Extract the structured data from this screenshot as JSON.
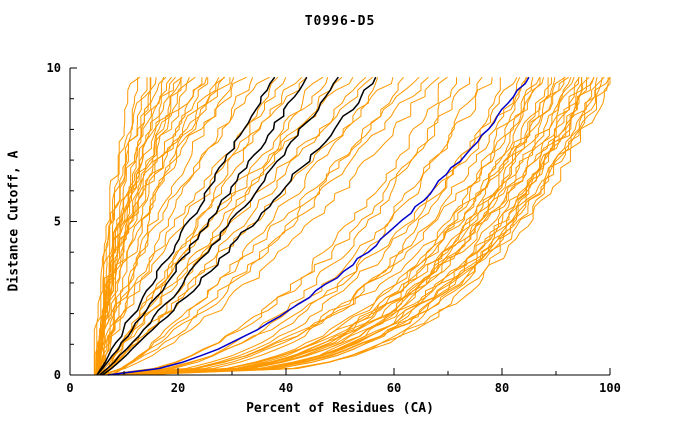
{
  "chart_data": {
    "type": "line",
    "title": "T0996-D5",
    "xlabel": "Percent of Residues (CA)",
    "ylabel": "Distance Cutoff, A",
    "xlim": [
      0,
      100
    ],
    "ylim": [
      0,
      10
    ],
    "x_ticks": [
      0,
      20,
      40,
      60,
      80,
      100
    ],
    "x_minor_ticks": [
      10,
      30,
      50,
      70,
      90
    ],
    "y_ticks": [
      0,
      5,
      10
    ],
    "y_minor_ticks": [
      1,
      2,
      3,
      4,
      6,
      7,
      8,
      9
    ],
    "grid": false,
    "legend": "none",
    "curve_top_y": 9.7,
    "curve_param_format": [
      "x_at_y0_percent",
      "x_at_top_percent",
      "shape_exponent"
    ],
    "series_groups": [
      {
        "name": "predictions-orange",
        "color": "#ff9900",
        "stroke_width": 1,
        "jitter": 1.1,
        "curves": [
          [
            4.5,
            12,
            1.8
          ],
          [
            5,
            13,
            2.0
          ],
          [
            4.8,
            14,
            1.6
          ],
          [
            5.2,
            15,
            2.2
          ],
          [
            5,
            15.5,
            1.4
          ],
          [
            5.5,
            16,
            1.9
          ],
          [
            4.6,
            17,
            2.4
          ],
          [
            5,
            17.5,
            1.5
          ],
          [
            5.3,
            18,
            2.0
          ],
          [
            4.9,
            19,
            1.7
          ],
          [
            5.6,
            20,
            2.3
          ],
          [
            5,
            20.5,
            1.3
          ],
          [
            5.4,
            21,
            1.9
          ],
          [
            4.7,
            22,
            1.6
          ],
          [
            5.8,
            23,
            2.1
          ],
          [
            5.1,
            24,
            1.5
          ],
          [
            5.5,
            25,
            2.4
          ],
          [
            4.8,
            26,
            1.8
          ],
          [
            6,
            27,
            1.4
          ],
          [
            5.2,
            28,
            2.0
          ],
          [
            5.7,
            29,
            1.6
          ],
          [
            5,
            30,
            2.2
          ],
          [
            6.2,
            31,
            1.5
          ],
          [
            5.4,
            32,
            1.9
          ],
          [
            5,
            34,
            1.2
          ],
          [
            5.5,
            36,
            1.5
          ],
          [
            6,
            38,
            0.9
          ],
          [
            5.2,
            40,
            1.3
          ],
          [
            6.5,
            42,
            1.1
          ],
          [
            5.8,
            44,
            1.4
          ],
          [
            5,
            46,
            0.8
          ],
          [
            6.8,
            48,
            1.2
          ],
          [
            5.5,
            50,
            1.0
          ],
          [
            7,
            52,
            1.3
          ],
          [
            6,
            54,
            0.9
          ],
          [
            5.3,
            56,
            1.1
          ],
          [
            7.5,
            58,
            0.8
          ],
          [
            6.2,
            60,
            1.0
          ],
          [
            5.6,
            62,
            0.7
          ],
          [
            8,
            64,
            0.9
          ],
          [
            6.5,
            66,
            0.8
          ],
          [
            5.9,
            68,
            0.7
          ],
          [
            6,
            70,
            0.5
          ],
          [
            7,
            72,
            0.45
          ],
          [
            8,
            74,
            0.55
          ],
          [
            6.5,
            76,
            0.4
          ],
          [
            9,
            78,
            0.5
          ],
          [
            7.5,
            80,
            0.35
          ],
          [
            10,
            82,
            0.45
          ],
          [
            8.5,
            84,
            0.4
          ],
          [
            6,
            85,
            0.5
          ],
          [
            11,
            86,
            0.35
          ],
          [
            9.5,
            88,
            0.45
          ],
          [
            7,
            89,
            0.3
          ],
          [
            12,
            90,
            0.4
          ],
          [
            10,
            91,
            0.35
          ],
          [
            8,
            92,
            0.45
          ],
          [
            11.5,
            93,
            0.3
          ],
          [
            11,
            94,
            0.4
          ],
          [
            9,
            95,
            0.35
          ],
          [
            12,
            96,
            0.3
          ],
          [
            10.5,
            97,
            0.4
          ],
          [
            10,
            98,
            0.35
          ],
          [
            8.5,
            99,
            0.3
          ],
          [
            12,
            100,
            0.35
          ],
          [
            11,
            100,
            0.28
          ],
          [
            11.5,
            99,
            0.32
          ],
          [
            9.8,
            98,
            0.27
          ],
          [
            12,
            97,
            0.33
          ],
          [
            10.2,
            96,
            0.29
          ],
          [
            10.5,
            95,
            0.31
          ],
          [
            11.8,
            94,
            0.26
          ],
          [
            7.8,
            93,
            0.34
          ],
          [
            6.8,
            91,
            0.3
          ],
          [
            9.2,
            89,
            0.28
          ],
          [
            10.8,
            87,
            0.33
          ],
          [
            7.2,
            86,
            0.26
          ],
          [
            9.6,
            84,
            0.3
          ]
        ]
      },
      {
        "name": "highlight-black",
        "color": "#000000",
        "stroke_width": 1.5,
        "jitter": 0.6,
        "curves": [
          [
            5,
            38,
            1.0
          ],
          [
            5,
            44,
            0.95
          ],
          [
            5.5,
            50,
            0.9
          ],
          [
            6,
            57,
            0.9
          ]
        ]
      },
      {
        "name": "highlight-blue",
        "color": "#0000cc",
        "stroke_width": 1.5,
        "jitter": 0.45,
        "curves": [
          [
            7,
            85,
            0.55
          ]
        ]
      }
    ]
  }
}
